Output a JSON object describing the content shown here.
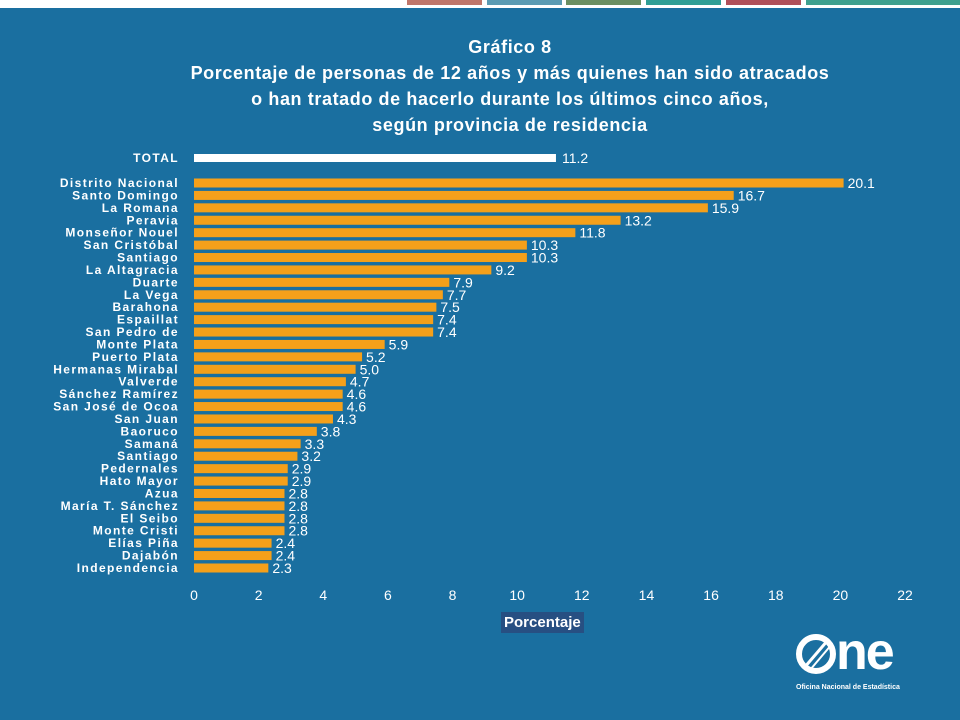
{
  "title": {
    "line1": "Gráfico 8",
    "line2": "Porcentaje de personas de 12 años y más quienes han sido atracados",
    "line3": "o han tratado de hacerlo durante los últimos cinco años,",
    "line4": "según provincia de residencia"
  },
  "colors": {
    "background": "#1a6fa0",
    "bar": "#f5a01a",
    "total_bar": "#ffffff",
    "axis_title_bg": "#274f82",
    "strip": [
      "#c0766a",
      "#5b9bb3",
      "#6b8f62",
      "#2f9e95",
      "#b0505a",
      "#3fa08f"
    ]
  },
  "chart_data": {
    "type": "bar",
    "orientation": "horizontal",
    "xlabel": "Porcentaje",
    "xlim": [
      0,
      22
    ],
    "xticks": [
      "0",
      "2",
      "4",
      "6",
      "8",
      "10",
      "12",
      "14",
      "16",
      "18",
      "20",
      "22"
    ],
    "total": {
      "label": "TOTAL",
      "value": 11.2,
      "value_text": "11.2"
    },
    "categories": [
      "Distrito Nacional",
      "Santo Domingo",
      "La Romana",
      "Peravia",
      "Monseñor Nouel",
      "San Cristóbal",
      "Santiago",
      "La Altagracia",
      "Duarte",
      "La Vega",
      "Barahona",
      "Espaillat",
      "San Pedro de",
      "Monte Plata",
      "Puerto Plata",
      "Hermanas Mirabal",
      "Valverde",
      "Sánchez Ramírez",
      "San José de Ocoa",
      "San Juan",
      "Baoruco",
      "Samaná",
      "Santiago",
      "Pedernales",
      "Hato Mayor",
      "Azua",
      "María T. Sánchez",
      "El Seibo",
      "Monte Cristi",
      "Elías Piña",
      "Dajabón",
      "Independencia"
    ],
    "values": [
      20.1,
      16.7,
      15.9,
      13.2,
      11.8,
      10.3,
      10.3,
      9.2,
      7.9,
      7.7,
      7.5,
      7.4,
      7.4,
      5.9,
      5.2,
      5.0,
      4.7,
      4.6,
      4.6,
      4.3,
      3.8,
      3.3,
      3.2,
      2.9,
      2.9,
      2.8,
      2.8,
      2.8,
      2.8,
      2.4,
      2.4,
      2.3
    ],
    "value_texts": [
      "20.1",
      "16.7",
      "15.9",
      "13.2",
      "11.8",
      "10.3",
      "10.3",
      "9.2",
      "7.9",
      "7.7",
      "7.5",
      "7.4",
      "7.4",
      "5.9",
      "5.2",
      "5.0",
      "4.7",
      "4.6",
      "4.6",
      "4.3",
      "3.8",
      "3.3",
      "3.2",
      "2.9",
      "2.9",
      "2.8",
      "2.8",
      "2.8",
      "2.8",
      "2.4",
      "2.4",
      "2.3"
    ]
  },
  "logo": {
    "icon": "one-logo-icon",
    "word": "ne",
    "subtitle": "Oficina Nacional de Estadística"
  }
}
